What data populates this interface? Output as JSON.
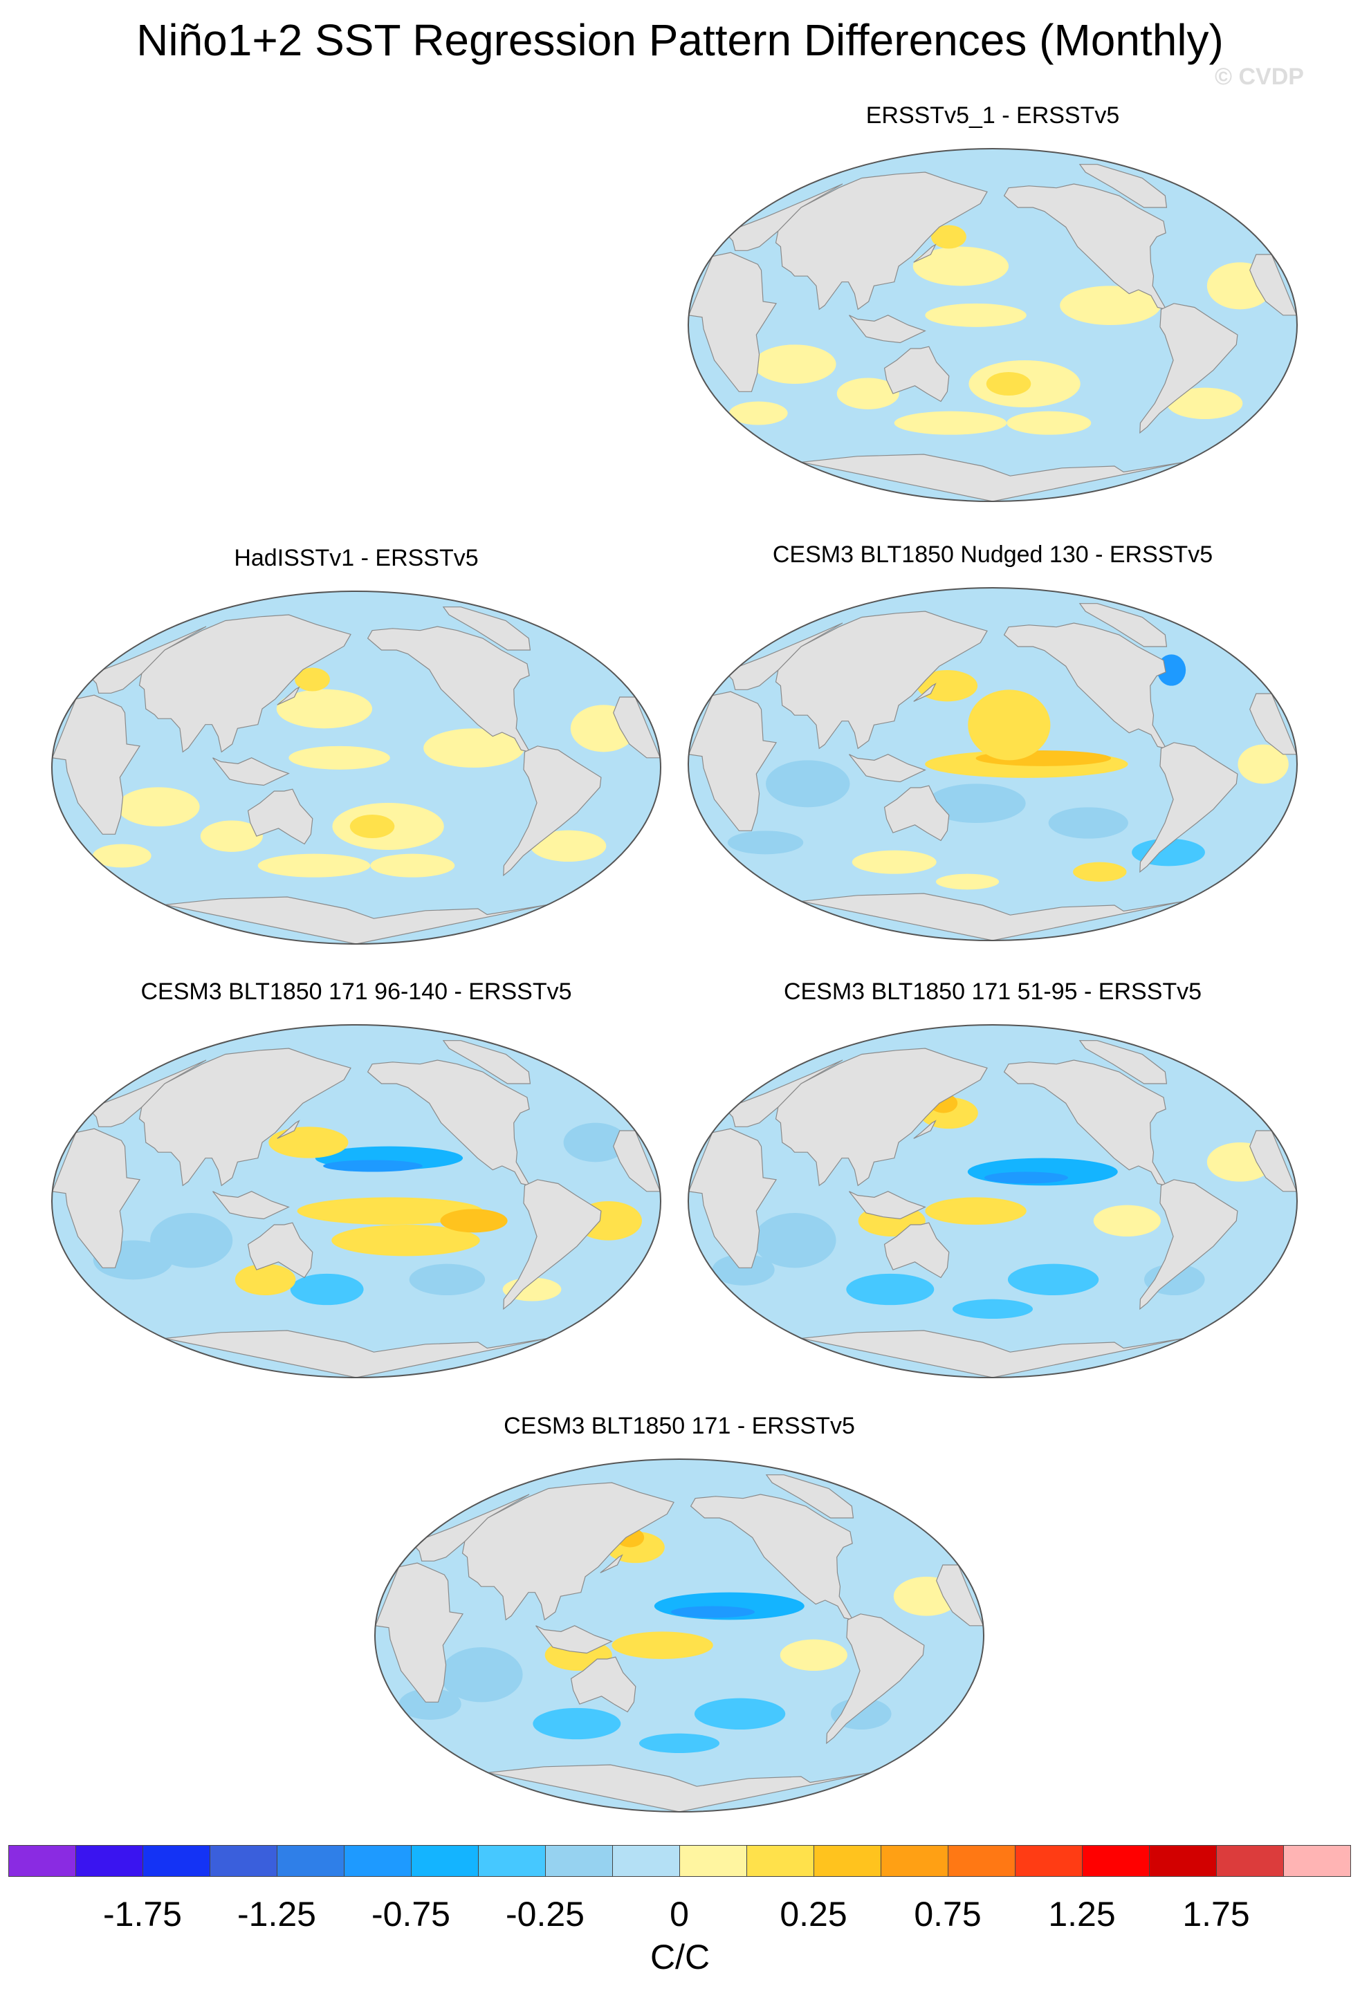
{
  "title": "Niño1+2 SST Regression Pattern Differences (Monthly)",
  "watermark": "© CVDP",
  "panels": [
    {
      "title": "ERSSTv5_1 - ERSSTv5",
      "pattern": "weak-mixed"
    },
    {
      "title": "HadISSTv1 - ERSSTv5",
      "pattern": "weak-mixed"
    },
    {
      "title": "CESM3 BLT1850 Nudged 130 - ERSSTv5",
      "pattern": "warm-equatorial-pacific"
    },
    {
      "title": "CESM3 BLT1850 171 96-140 - ERSSTv5",
      "pattern": "cool-north-pacific-warm-south"
    },
    {
      "title": "CESM3 BLT1850 171 51-95 - ERSSTv5",
      "pattern": "cool-north-pacific-warm-kuroshio"
    },
    {
      "title": "CESM3 BLT1850 171 - ERSSTv5",
      "pattern": "cool-north-pacific-warm-kuroshio"
    }
  ],
  "colorbar": {
    "colors": [
      "#8a2be2",
      "#3a14f0",
      "#1433f5",
      "#3a5fdc",
      "#2f7fe8",
      "#1e9aff",
      "#14b4ff",
      "#46c8ff",
      "#96d2f0",
      "#b4e0f5",
      "#fff5a0",
      "#ffe14b",
      "#ffc31e",
      "#ffa014",
      "#ff7814",
      "#ff3c14",
      "#ff0000",
      "#d20000",
      "#dc3c3c",
      "#ffb4b4"
    ],
    "tick_labels": [
      "-1.75",
      "-1.25",
      "-0.75",
      "-0.25",
      "0",
      "0.25",
      "0.75",
      "1.25",
      "1.75"
    ],
    "units": "C/C"
  },
  "land_color": "#e1e1e1",
  "ocean_base_color": "#b4e0f5"
}
